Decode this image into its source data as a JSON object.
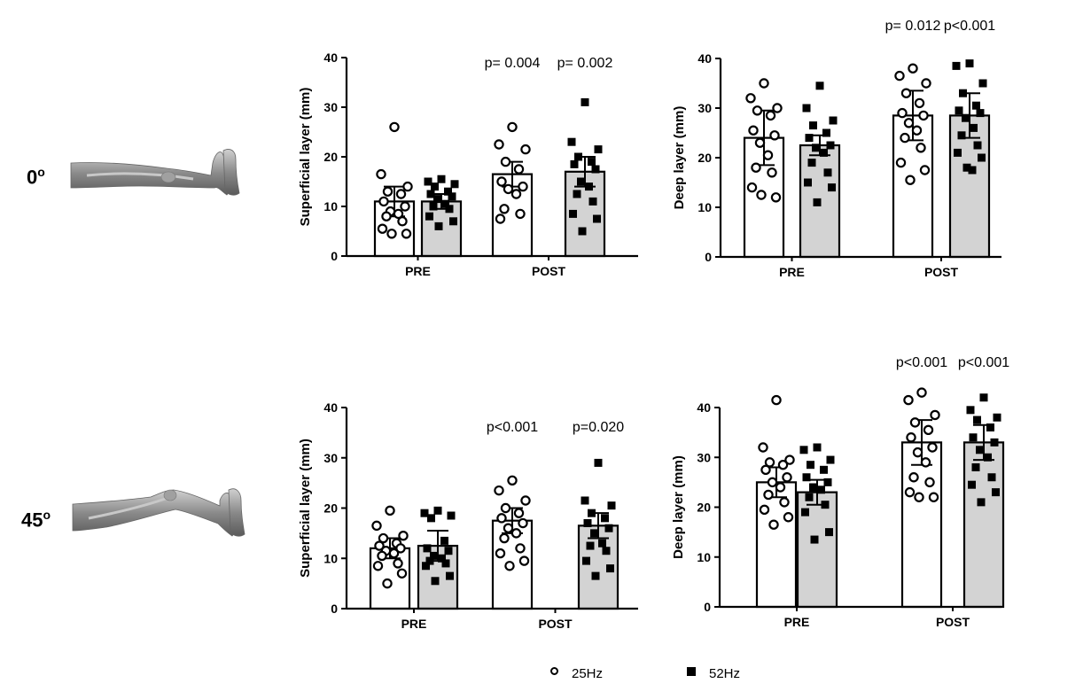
{
  "figure": {
    "rows": [
      {
        "angle_label": "0",
        "angle_sup": "o"
      },
      {
        "angle_label": "45",
        "angle_sup": "o"
      }
    ],
    "legend": [
      {
        "name": "25Hz",
        "marker": "open-circle"
      },
      {
        "name": "52Hz",
        "marker": "filled-square"
      }
    ],
    "colors": {
      "bar_25hz": "#ffffff",
      "bar_52hz": "#d3d3d3",
      "ink": "#000000"
    }
  },
  "chart_data": [
    {
      "type": "bar",
      "ylabel": "Superficial layer (mm)",
      "categories": [
        "PRE",
        "POST"
      ],
      "ylim": [
        0,
        40
      ],
      "yticks": [
        0,
        10,
        20,
        30,
        40
      ],
      "series": [
        {
          "name": "25Hz",
          "means": [
            11,
            16.5
          ],
          "errors": [
            3,
            2.5
          ],
          "points": [
            [
              26,
              16.5,
              14,
              13,
              12.5,
              11,
              10,
              9,
              8.5,
              8,
              7,
              5.5,
              4.5,
              4.5
            ],
            [
              26,
              22.5,
              21.5,
              19,
              17.5,
              15,
              14,
              13.5,
              12.5,
              9.5,
              8.5,
              7.5
            ]
          ]
        },
        {
          "name": "52Hz",
          "means": [
            11,
            17
          ],
          "errors": [
            1.5,
            3
          ],
          "points": [
            [
              15.5,
              15,
              14.5,
              14,
              13,
              12.5,
              12,
              11.5,
              10.5,
              10,
              9.5,
              8,
              7,
              6
            ],
            [
              31,
              23,
              21.5,
              20,
              19,
              18.5,
              17.5,
              15,
              14,
              12.5,
              11,
              8.5,
              7.5,
              5
            ]
          ]
        }
      ],
      "annotations": [
        {
          "category": "POST",
          "series": "25Hz",
          "text": "p= 0.004"
        },
        {
          "category": "POST",
          "series": "52Hz",
          "text": "p= 0.002"
        }
      ]
    },
    {
      "type": "bar",
      "ylabel": "Deep layer (mm)",
      "categories": [
        "PRE",
        "POST"
      ],
      "ylim": [
        0,
        40
      ],
      "yticks": [
        0,
        10,
        20,
        30,
        40
      ],
      "series": [
        {
          "name": "25Hz",
          "means": [
            24,
            28.5
          ],
          "errors": [
            5.5,
            5
          ],
          "points": [
            [
              35,
              32,
              30,
              29.5,
              28.5,
              25.5,
              24.5,
              23,
              20.5,
              18,
              17,
              14,
              12,
              12.5
            ],
            [
              38,
              36.5,
              35,
              33,
              31,
              29,
              28.5,
              27,
              25.5,
              24,
              22,
              19,
              17.5,
              15.5
            ]
          ]
        },
        {
          "name": "52Hz",
          "means": [
            22.5,
            28.5
          ],
          "errors": [
            2,
            4.5
          ],
          "points": [
            [
              34.5,
              30,
              27.5,
              26.5,
              25,
              24,
              22.5,
              22,
              21,
              19,
              17,
              15,
              14,
              11
            ],
            [
              39,
              38.5,
              35,
              33,
              30.5,
              29.5,
              29,
              28,
              26,
              24.5,
              22.5,
              21,
              20,
              18,
              17.5
            ]
          ]
        }
      ],
      "annotations": [
        {
          "category": "POST",
          "series": "25Hz",
          "text": "p= 0.012"
        },
        {
          "category": "POST",
          "series": "52Hz",
          "text": "p<0.001"
        }
      ]
    },
    {
      "type": "bar",
      "ylabel": "Superficial layer (mm)",
      "categories": [
        "PRE",
        "POST"
      ],
      "ylim": [
        0,
        40
      ],
      "yticks": [
        0,
        10,
        20,
        30,
        40
      ],
      "series": [
        {
          "name": "25Hz",
          "means": [
            12,
            17.5
          ],
          "errors": [
            2,
            2.5
          ],
          "points": [
            [
              19.5,
              16.5,
              14.5,
              14,
              13,
              12.5,
              12,
              11.5,
              11,
              10.5,
              9,
              8.5,
              7,
              5
            ],
            [
              25.5,
              23.5,
              21.5,
              20,
              19,
              18,
              17,
              16,
              15,
              14,
              12,
              11,
              9.5,
              8.5
            ]
          ]
        },
        {
          "name": "52Hz",
          "means": [
            12.5,
            16.5
          ],
          "errors": [
            3,
            2.5
          ],
          "points": [
            [
              19.5,
              19,
              18.5,
              18,
              13.5,
              12,
              11.5,
              10.5,
              10,
              9.5,
              9,
              8.5,
              6.5,
              5.5
            ],
            [
              29,
              21.5,
              20.5,
              19,
              18,
              17,
              16,
              15,
              13,
              12.5,
              11.5,
              9.5,
              8,
              6.5
            ]
          ]
        }
      ],
      "annotations": [
        {
          "category": "POST",
          "series": "25Hz",
          "text": "p<0.001"
        },
        {
          "category": "POST",
          "series": "52Hz",
          "text": "p=0.020"
        }
      ]
    },
    {
      "type": "bar",
      "ylabel": "Deep layer (mm)",
      "categories": [
        "PRE",
        "POST"
      ],
      "ylim": [
        0,
        40
      ],
      "yticks": [
        0,
        10,
        20,
        30,
        40
      ],
      "series": [
        {
          "name": "25Hz",
          "means": [
            25,
            33
          ],
          "errors": [
            3,
            4.5
          ],
          "points": [
            [
              41.5,
              32,
              29.5,
              29,
              28.5,
              27.5,
              26,
              25,
              24,
              22.5,
              21,
              19.5,
              18,
              16.5
            ],
            [
              43,
              41.5,
              38.5,
              37,
              35.5,
              34,
              32,
              31,
              29,
              26,
              25,
              23,
              22,
              22
            ]
          ]
        },
        {
          "name": "52Hz",
          "means": [
            23,
            33
          ],
          "errors": [
            2.5,
            3.5
          ],
          "points": [
            [
              32,
              31.5,
              29.5,
              28.5,
              27.5,
              26,
              25,
              24,
              23.5,
              22,
              20.5,
              19,
              15,
              13.5
            ],
            [
              42,
              39.5,
              38,
              37.5,
              36,
              34,
              33,
              31.5,
              30,
              28,
              26,
              24.5,
              23,
              21
            ]
          ]
        }
      ],
      "annotations": [
        {
          "category": "POST",
          "series": "25Hz",
          "text": "p<0.001"
        },
        {
          "category": "POST",
          "series": "52Hz",
          "text": "p<0.001"
        }
      ]
    }
  ]
}
